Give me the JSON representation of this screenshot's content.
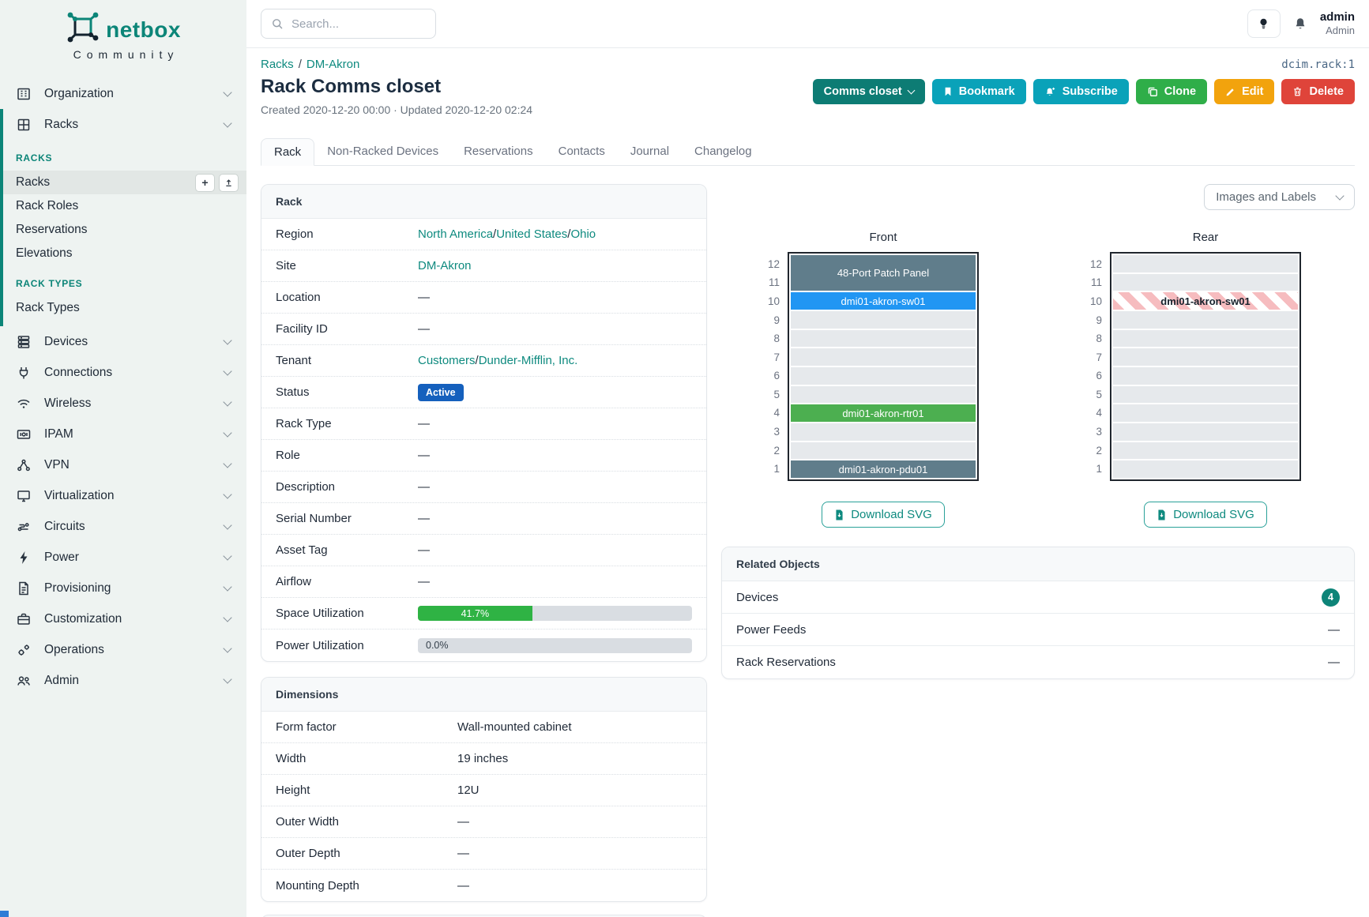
{
  "brand": {
    "name": "netbox",
    "subtitle": "Community"
  },
  "topbar": {
    "search_placeholder": "Search...",
    "username": "admin",
    "role": "Admin"
  },
  "sidebar": {
    "items_top": [
      {
        "label": "Organization",
        "icon": "building-icon"
      },
      {
        "label": "Racks",
        "icon": "rack-grid-icon"
      }
    ],
    "sections": [
      {
        "title": "RACKS",
        "items": [
          {
            "label": "Racks",
            "active": true
          },
          {
            "label": "Rack Roles"
          },
          {
            "label": "Reservations"
          },
          {
            "label": "Elevations"
          }
        ]
      },
      {
        "title": "RACK TYPES",
        "items": [
          {
            "label": "Rack Types"
          }
        ]
      }
    ],
    "quick_add_label": "+",
    "items_bottom": [
      {
        "label": "Devices",
        "icon": "server-icon"
      },
      {
        "label": "Connections",
        "icon": "plug-icon"
      },
      {
        "label": "Wireless",
        "icon": "wifi-icon"
      },
      {
        "label": "IPAM",
        "icon": "ip-card-icon"
      },
      {
        "label": "VPN",
        "icon": "network-nodes-icon"
      },
      {
        "label": "Virtualization",
        "icon": "monitor-icon"
      },
      {
        "label": "Circuits",
        "icon": "circuit-icon"
      },
      {
        "label": "Power",
        "icon": "bolt-icon"
      },
      {
        "label": "Provisioning",
        "icon": "document-icon"
      },
      {
        "label": "Customization",
        "icon": "briefcase-icon"
      },
      {
        "label": "Operations",
        "icon": "gears-icon"
      },
      {
        "label": "Admin",
        "icon": "users-icon"
      }
    ]
  },
  "page": {
    "breadcrumb": [
      {
        "label": "Racks"
      },
      {
        "label": "DM-Akron"
      }
    ],
    "object_id": "dcim.rack:1",
    "title": "Rack Comms closet",
    "meta": "Created 2020-12-20 00:00 · Updated 2020-12-20 02:24",
    "actions": [
      {
        "label": "Comms closet",
        "icon": "chevron-down-icon"
      },
      {
        "label": "Bookmark",
        "icon": "bookmark-icon"
      },
      {
        "label": "Subscribe",
        "icon": "bell-plus-icon"
      },
      {
        "label": "Clone",
        "icon": "copy-icon"
      },
      {
        "label": "Edit",
        "icon": "pencil-icon"
      },
      {
        "label": "Delete",
        "icon": "trash-icon"
      }
    ],
    "tabs": [
      {
        "label": "Rack",
        "active": true
      },
      {
        "label": "Non-Racked Devices"
      },
      {
        "label": "Reservations"
      },
      {
        "label": "Contacts"
      },
      {
        "label": "Journal"
      },
      {
        "label": "Changelog"
      }
    ]
  },
  "rack_card": {
    "title": "Rack",
    "label_width": 180,
    "rows": [
      {
        "label": "Region",
        "segments": [
          {
            "t": "North America",
            "link": true
          },
          {
            "t": " / "
          },
          {
            "t": "United States",
            "link": true
          },
          {
            "t": " / "
          },
          {
            "t": "Ohio",
            "link": true
          }
        ]
      },
      {
        "label": "Site",
        "segments": [
          {
            "t": "DM-Akron",
            "link": true
          }
        ]
      },
      {
        "label": "Location",
        "segments": [
          {
            "t": "—"
          }
        ]
      },
      {
        "label": "Facility ID",
        "segments": [
          {
            "t": "—"
          }
        ]
      },
      {
        "label": "Tenant",
        "segments": [
          {
            "t": "Customers",
            "link": true
          },
          {
            "t": " / "
          },
          {
            "t": "Dunder-Mifflin, Inc.",
            "link": true
          }
        ]
      },
      {
        "label": "Status",
        "badge": "Active"
      },
      {
        "label": "Rack Type",
        "segments": [
          {
            "t": "—"
          }
        ]
      },
      {
        "label": "Role",
        "segments": [
          {
            "t": "—"
          }
        ]
      },
      {
        "label": "Description",
        "segments": [
          {
            "t": "—"
          }
        ]
      },
      {
        "label": "Serial Number",
        "segments": [
          {
            "t": "—"
          }
        ]
      },
      {
        "label": "Asset Tag",
        "segments": [
          {
            "t": "—"
          }
        ]
      },
      {
        "label": "Airflow",
        "segments": [
          {
            "t": "—"
          }
        ]
      },
      {
        "label": "Space Utilization",
        "progress": {
          "percent": 41.7,
          "label": "41.7%",
          "color": "#2fb344"
        }
      },
      {
        "label": "Power Utilization",
        "progress": {
          "percent": 0.0,
          "label": "0.0%",
          "color": "#2fb344"
        }
      }
    ]
  },
  "dimensions_card": {
    "title": "Dimensions",
    "label_width": 230,
    "rows": [
      {
        "label": "Form factor",
        "segments": [
          {
            "t": "Wall-mounted cabinet"
          }
        ]
      },
      {
        "label": "Width",
        "segments": [
          {
            "t": "19 inches"
          }
        ]
      },
      {
        "label": "Height",
        "segments": [
          {
            "t": "12U"
          }
        ]
      },
      {
        "label": "Outer Width",
        "segments": [
          {
            "t": "—"
          }
        ]
      },
      {
        "label": "Outer Depth",
        "segments": [
          {
            "t": "—"
          }
        ]
      },
      {
        "label": "Mounting Depth",
        "segments": [
          {
            "t": "—"
          }
        ]
      }
    ]
  },
  "elevations": {
    "view_select_label": "Images and Labels",
    "download_label": "Download SVG",
    "unit_labels": [
      "12",
      "11",
      "10",
      "9",
      "8",
      "7",
      "6",
      "5",
      "4",
      "3",
      "2",
      "1"
    ],
    "front": {
      "title": "Front",
      "devices": [
        {
          "name": "48-Port Patch Panel",
          "top_unit": 12,
          "u_height": 2,
          "color": "#607d8b"
        },
        {
          "name": "dmi01-akron-sw01",
          "top_unit": 10,
          "u_height": 1,
          "color": "#2196f3"
        },
        {
          "name": "dmi01-akron-rtr01",
          "top_unit": 4,
          "u_height": 1,
          "color": "#4caf50"
        },
        {
          "name": "dmi01-akron-pdu01",
          "top_unit": 1,
          "u_height": 1,
          "color": "#607d8b"
        }
      ]
    },
    "rear": {
      "title": "Rear",
      "devices": [
        {
          "name": "dmi01-akron-sw01",
          "top_unit": 10,
          "u_height": 1,
          "pattern": "striped"
        }
      ]
    }
  },
  "related_card": {
    "title": "Related Objects",
    "rows": [
      {
        "label": "Devices",
        "count": "4"
      },
      {
        "label": "Power Feeds",
        "value": "—"
      },
      {
        "label": "Rack Reservations",
        "value": "—"
      }
    ]
  },
  "accent_colors": {
    "brand_teal": "#0c8578",
    "link_teal": "#0e8a7f",
    "status_active_blue": "#1560bd",
    "progress_green": "#2fb344",
    "count_badge_teal": "#0d8478",
    "button_cyan": "#0aa2b9",
    "button_green": "#2fae49",
    "button_orange": "#f2a30d",
    "button_red": "#df443a"
  }
}
